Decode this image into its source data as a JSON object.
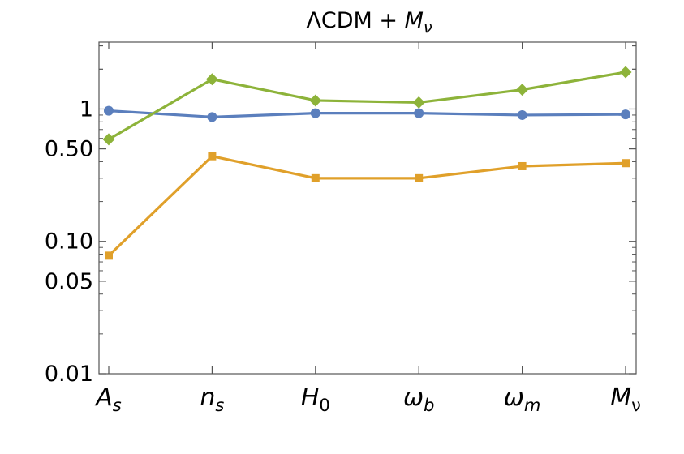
{
  "chart_data": {
    "type": "line",
    "title": {
      "main": "ΛCDM + ",
      "sym": "M",
      "sub": "ν"
    },
    "yscale": "log",
    "ylim": [
      0.01,
      3.2
    ],
    "yticks": [
      {
        "value": 1,
        "label": "1"
      },
      {
        "value": 0.5,
        "label": "0.50"
      },
      {
        "value": 0.1,
        "label": "0.10"
      },
      {
        "value": 0.05,
        "label": "0.05"
      },
      {
        "value": 0.01,
        "label": "0.01"
      }
    ],
    "categories": [
      {
        "sym": "A",
        "sub": "s",
        "sub_italic": true
      },
      {
        "sym": "n",
        "sub": "s",
        "sub_italic": true
      },
      {
        "sym": "H",
        "sub": "0",
        "sub_italic": false
      },
      {
        "sym": "ω",
        "sub": "b",
        "sub_italic": true
      },
      {
        "sym": "ω",
        "sub": "m",
        "sub_italic": true
      },
      {
        "sym": "M",
        "sub": "ν",
        "sub_italic": false
      }
    ],
    "series": [
      {
        "color": "#5b7fbd",
        "marker": "circle",
        "values": [
          0.97,
          0.87,
          0.93,
          0.93,
          0.9,
          0.91
        ]
      },
      {
        "color": "#e0a02a",
        "marker": "square",
        "values": [
          0.078,
          0.44,
          0.3,
          0.3,
          0.37,
          0.39
        ]
      },
      {
        "color": "#8db33a",
        "marker": "diamond",
        "values": [
          0.59,
          1.68,
          1.16,
          1.12,
          1.4,
          1.9
        ]
      }
    ],
    "grid": false,
    "legend": "none"
  }
}
